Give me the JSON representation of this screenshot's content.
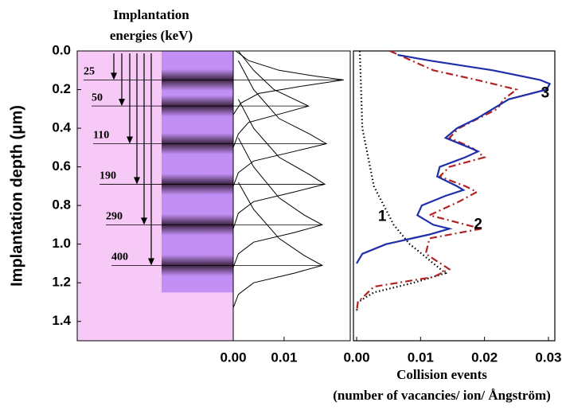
{
  "chart_data": [
    {
      "type": "line",
      "title": [
        "Implantation",
        "energies (keV)"
      ],
      "y_label": "Implantation depth (μm)",
      "ylim": [
        0,
        1.5
      ],
      "yticks": [
        {
          "value": 0,
          "label": "0.0"
        },
        0.2,
        0.4,
        0.6,
        0.8,
        {
          "value": 1,
          "label": "1.0"
        },
        1.2,
        1.4
      ],
      "xlim": [
        0,
        0.023
      ],
      "xticks": [
        {
          "value": 0,
          "label": "0.00"
        },
        0.01
      ],
      "region_color": "#f7c9f7",
      "band_colors": [
        "#c28ff5",
        "#3a2340"
      ],
      "series": [
        {
          "name": 25,
          "color": "#000000",
          "peak_depth": 0.15,
          "depth": [
            0.0,
            0.05,
            0.1,
            0.13,
            0.15,
            0.18,
            0.22,
            0.27,
            0.33
          ],
          "values": [
            0.0005,
            0.003,
            0.009,
            0.016,
            0.0217,
            0.014,
            0.005,
            0.0015,
            0
          ]
        },
        {
          "name": 50,
          "color": "#000000",
          "peak_depth": 0.285,
          "depth": [
            0.0,
            0.1,
            0.2,
            0.25,
            0.285,
            0.32,
            0.37,
            0.43,
            0.5
          ],
          "values": [
            0.001,
            0.004,
            0.008,
            0.012,
            0.0148,
            0.01,
            0.003,
            0.001,
            0
          ]
        },
        {
          "name": 110,
          "color": "#000000",
          "peak_depth": 0.48,
          "depth": [
            0.05,
            0.2,
            0.35,
            0.43,
            0.48,
            0.52,
            0.57,
            0.63,
            0.7
          ],
          "values": [
            0.001,
            0.004,
            0.009,
            0.015,
            0.0183,
            0.012,
            0.004,
            0.001,
            0
          ]
        },
        {
          "name": 190,
          "color": "#000000",
          "peak_depth": 0.69,
          "depth": [
            0.25,
            0.4,
            0.55,
            0.64,
            0.69,
            0.73,
            0.78,
            0.84,
            0.92
          ],
          "values": [
            0.001,
            0.004,
            0.009,
            0.015,
            0.018,
            0.012,
            0.004,
            0.001,
            0
          ]
        },
        {
          "name": 290,
          "color": "#000000",
          "peak_depth": 0.9,
          "depth": [
            0.45,
            0.6,
            0.76,
            0.85,
            0.9,
            0.94,
            0.99,
            1.05,
            1.12
          ],
          "values": [
            0.001,
            0.004,
            0.009,
            0.014,
            0.0175,
            0.012,
            0.004,
            0.001,
            0
          ]
        },
        {
          "name": 400,
          "color": "#000000",
          "peak_depth": 1.11,
          "depth": [
            0.68,
            0.82,
            0.97,
            1.06,
            1.11,
            1.15,
            1.2,
            1.26,
            1.33
          ],
          "values": [
            0.001,
            0.004,
            0.009,
            0.014,
            0.0175,
            0.012,
            0.004,
            0.001,
            0
          ]
        }
      ]
    },
    {
      "type": "line",
      "x_label": [
        "Collision events",
        "(number of vacancies/ ion/ Ångström)"
      ],
      "ylim": [
        0,
        1.5
      ],
      "xlim": [
        -0.0005,
        0.031
      ],
      "xticks": [
        {
          "value": 0,
          "label": "0.00"
        },
        0.01,
        0.02,
        0.03
      ],
      "series": [
        {
          "name": "1",
          "color": "#000000",
          "dash": "dot",
          "label_at": [
            0.004,
            0.86
          ],
          "depth": [
            0.0,
            0.4,
            0.7,
            0.9,
            1.0,
            1.05,
            1.1,
            1.15,
            1.2,
            1.25,
            1.3,
            1.35
          ],
          "values": [
            0.0005,
            0.0009,
            0.0027,
            0.0058,
            0.0083,
            0.0102,
            0.012,
            0.0139,
            0.0089,
            0.0027,
            0.0002,
            0
          ]
        },
        {
          "name": "2",
          "color": "#b22222",
          "dash": "dashdot",
          "label_at": [
            0.019,
            0.9
          ],
          "depth": [
            0.0,
            0.1,
            0.15,
            0.2,
            0.25,
            0.3,
            0.35,
            0.4,
            0.45,
            0.5,
            0.55,
            0.6,
            0.65,
            0.7,
            0.73,
            0.78,
            0.85,
            0.92,
            0.97,
            1.05,
            1.13,
            1.17,
            1.22,
            1.3,
            1.35
          ],
          "values": [
            0.0052,
            0.012,
            0.0188,
            0.025,
            0.023,
            0.022,
            0.019,
            0.016,
            0.0145,
            0.018,
            0.02,
            0.0145,
            0.013,
            0.017,
            0.0188,
            0.016,
            0.0114,
            0.0195,
            0.0114,
            0.0108,
            0.0145,
            0.012,
            0.0027,
            0.0002,
            0
          ]
        },
        {
          "name": "3",
          "color": "#1f2fa8",
          "dash": "solid",
          "label_at": [
            0.0295,
            0.22
          ],
          "depth": [
            0.02,
            0.05,
            0.1,
            0.15,
            0.17,
            0.2,
            0.25,
            0.3,
            0.35,
            0.4,
            0.45,
            0.5,
            0.52,
            0.55,
            0.6,
            0.65,
            0.7,
            0.72,
            0.75,
            0.8,
            0.85,
            0.9,
            0.92,
            0.95,
            1.0,
            1.05,
            1.1
          ],
          "values": [
            0.0064,
            0.0114,
            0.0213,
            0.0287,
            0.0302,
            0.0297,
            0.0238,
            0.0213,
            0.0188,
            0.0157,
            0.0139,
            0.0176,
            0.019,
            0.017,
            0.013,
            0.0126,
            0.0157,
            0.0167,
            0.0139,
            0.0102,
            0.0095,
            0.012,
            0.0145,
            0.0114,
            0.0046,
            0.0009,
            0
          ]
        }
      ]
    }
  ]
}
